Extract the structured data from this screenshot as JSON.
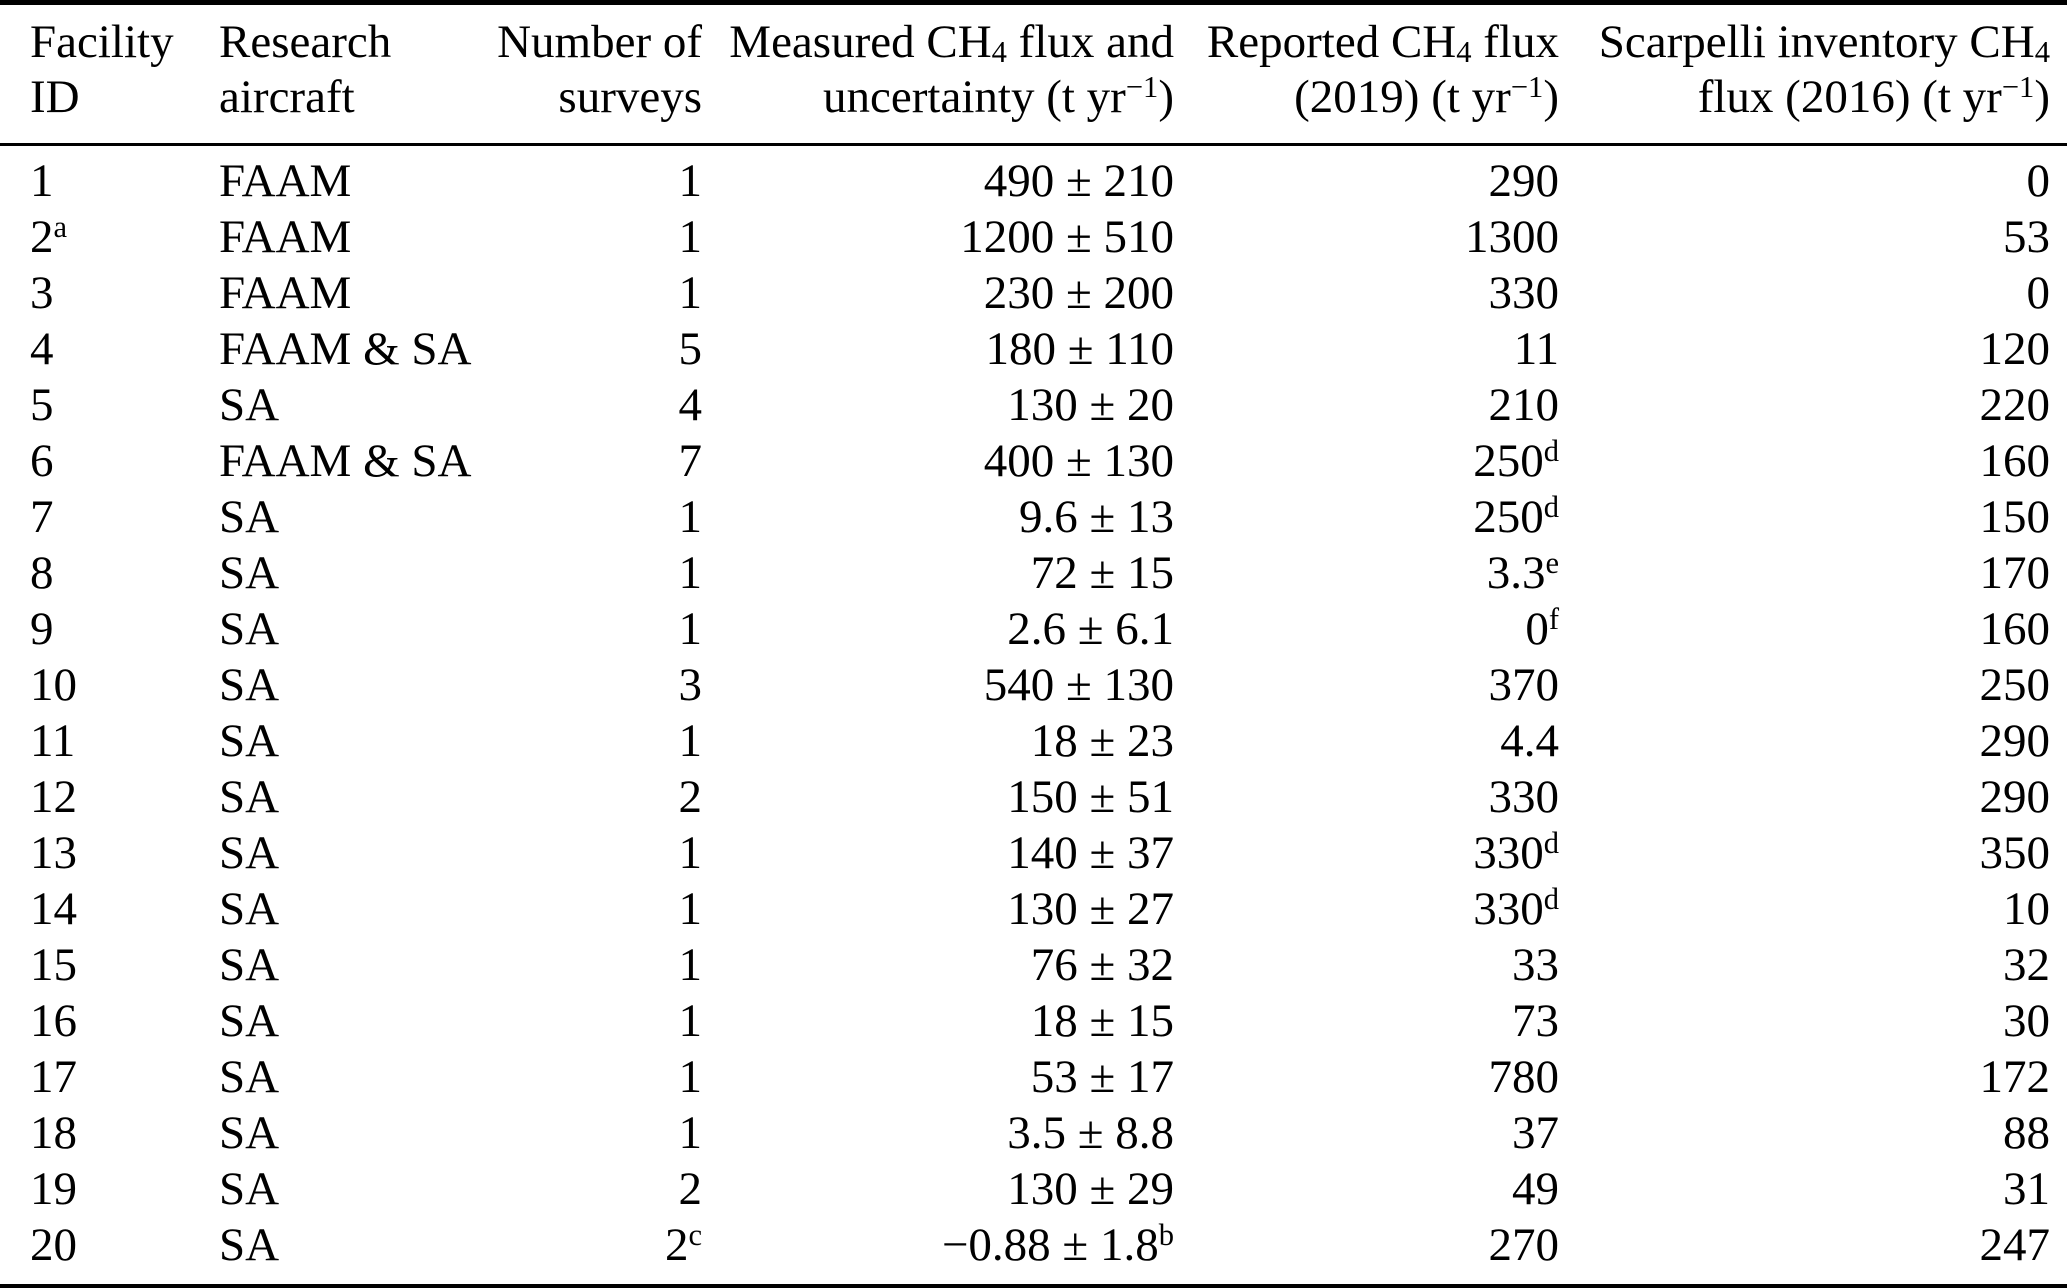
{
  "page": {
    "background_color": "#ffffff",
    "text_color": "#000000",
    "rule_color": "#000000"
  },
  "table": {
    "header": [
      {
        "id": "facility-id",
        "align": "left",
        "line1": [
          {
            "text": "Facility"
          }
        ],
        "line2": [
          {
            "text": "ID"
          }
        ]
      },
      {
        "id": "research-aircraft",
        "align": "left",
        "line1": [
          {
            "text": "Research"
          }
        ],
        "line2": [
          {
            "text": "aircraft"
          }
        ]
      },
      {
        "id": "number-of-surveys",
        "align": "right",
        "line1": [
          {
            "text": "Number of"
          }
        ],
        "line2": [
          {
            "text": "surveys"
          }
        ]
      },
      {
        "id": "measured-flux",
        "align": "right",
        "line1": [
          {
            "text": "Measured CH"
          },
          {
            "sub": "4"
          },
          {
            "text": " flux and"
          }
        ],
        "line2": [
          {
            "text": "uncertainty (t yr"
          },
          {
            "sup": "−1"
          },
          {
            "text": ")"
          }
        ]
      },
      {
        "id": "reported-flux",
        "align": "right",
        "line1": [
          {
            "text": "Reported CH"
          },
          {
            "sub": "4"
          },
          {
            "text": " flux"
          }
        ],
        "line2": [
          {
            "text": "(2019) (t yr"
          },
          {
            "sup": "−1"
          },
          {
            "text": ")"
          }
        ]
      },
      {
        "id": "scarpelli-flux",
        "align": "right",
        "line1": [
          {
            "text": "Scarpelli inventory CH"
          },
          {
            "sub": "4"
          }
        ],
        "line2": [
          {
            "text": "flux (2016) (t yr"
          },
          {
            "sup": "−1"
          },
          {
            "text": ")"
          }
        ]
      }
    ],
    "rows": [
      [
        [
          {
            "text": "1"
          }
        ],
        [
          {
            "text": "FAAM"
          }
        ],
        [
          {
            "text": "1"
          }
        ],
        [
          {
            "text": "490 ± 210"
          }
        ],
        [
          {
            "text": "290"
          }
        ],
        [
          {
            "text": "0"
          }
        ]
      ],
      [
        [
          {
            "text": "2"
          },
          {
            "sup": "a"
          }
        ],
        [
          {
            "text": "FAAM"
          }
        ],
        [
          {
            "text": "1"
          }
        ],
        [
          {
            "text": "1200 ± 510"
          }
        ],
        [
          {
            "text": "1300"
          }
        ],
        [
          {
            "text": "53"
          }
        ]
      ],
      [
        [
          {
            "text": "3"
          }
        ],
        [
          {
            "text": "FAAM"
          }
        ],
        [
          {
            "text": "1"
          }
        ],
        [
          {
            "text": "230 ± 200"
          }
        ],
        [
          {
            "text": "330"
          }
        ],
        [
          {
            "text": "0"
          }
        ]
      ],
      [
        [
          {
            "text": "4"
          }
        ],
        [
          {
            "text": "FAAM & SA"
          }
        ],
        [
          {
            "text": "5"
          }
        ],
        [
          {
            "text": "180 ± 110"
          }
        ],
        [
          {
            "text": "11"
          }
        ],
        [
          {
            "text": "120"
          }
        ]
      ],
      [
        [
          {
            "text": "5"
          }
        ],
        [
          {
            "text": "SA"
          }
        ],
        [
          {
            "text": "4"
          }
        ],
        [
          {
            "text": "130 ± 20"
          }
        ],
        [
          {
            "text": "210"
          }
        ],
        [
          {
            "text": "220"
          }
        ]
      ],
      [
        [
          {
            "text": "6"
          }
        ],
        [
          {
            "text": "FAAM & SA"
          }
        ],
        [
          {
            "text": "7"
          }
        ],
        [
          {
            "text": "400 ± 130"
          }
        ],
        [
          {
            "text": "250"
          },
          {
            "sup": "d"
          }
        ],
        [
          {
            "text": "160"
          }
        ]
      ],
      [
        [
          {
            "text": "7"
          }
        ],
        [
          {
            "text": "SA"
          }
        ],
        [
          {
            "text": "1"
          }
        ],
        [
          {
            "text": "9.6 ± 13"
          }
        ],
        [
          {
            "text": "250"
          },
          {
            "sup": "d"
          }
        ],
        [
          {
            "text": "150"
          }
        ]
      ],
      [
        [
          {
            "text": "8"
          }
        ],
        [
          {
            "text": "SA"
          }
        ],
        [
          {
            "text": "1"
          }
        ],
        [
          {
            "text": "72 ± 15"
          }
        ],
        [
          {
            "text": "3.3"
          },
          {
            "sup": "e"
          }
        ],
        [
          {
            "text": "170"
          }
        ]
      ],
      [
        [
          {
            "text": "9"
          }
        ],
        [
          {
            "text": "SA"
          }
        ],
        [
          {
            "text": "1"
          }
        ],
        [
          {
            "text": "2.6 ± 6.1"
          }
        ],
        [
          {
            "text": "0"
          },
          {
            "sup": "f"
          }
        ],
        [
          {
            "text": "160"
          }
        ]
      ],
      [
        [
          {
            "text": "10"
          }
        ],
        [
          {
            "text": "SA"
          }
        ],
        [
          {
            "text": "3"
          }
        ],
        [
          {
            "text": "540 ± 130"
          }
        ],
        [
          {
            "text": "370"
          }
        ],
        [
          {
            "text": "250"
          }
        ]
      ],
      [
        [
          {
            "text": "11"
          }
        ],
        [
          {
            "text": "SA"
          }
        ],
        [
          {
            "text": "1"
          }
        ],
        [
          {
            "text": "18 ± 23"
          }
        ],
        [
          {
            "text": "4.4"
          }
        ],
        [
          {
            "text": "290"
          }
        ]
      ],
      [
        [
          {
            "text": "12"
          }
        ],
        [
          {
            "text": "SA"
          }
        ],
        [
          {
            "text": "2"
          }
        ],
        [
          {
            "text": "150 ± 51"
          }
        ],
        [
          {
            "text": "330"
          }
        ],
        [
          {
            "text": "290"
          }
        ]
      ],
      [
        [
          {
            "text": "13"
          }
        ],
        [
          {
            "text": "SA"
          }
        ],
        [
          {
            "text": "1"
          }
        ],
        [
          {
            "text": "140 ± 37"
          }
        ],
        [
          {
            "text": "330"
          },
          {
            "sup": "d"
          }
        ],
        [
          {
            "text": "350"
          }
        ]
      ],
      [
        [
          {
            "text": "14"
          }
        ],
        [
          {
            "text": "SA"
          }
        ],
        [
          {
            "text": "1"
          }
        ],
        [
          {
            "text": "130 ± 27"
          }
        ],
        [
          {
            "text": "330"
          },
          {
            "sup": "d"
          }
        ],
        [
          {
            "text": "10"
          }
        ]
      ],
      [
        [
          {
            "text": "15"
          }
        ],
        [
          {
            "text": "SA"
          }
        ],
        [
          {
            "text": "1"
          }
        ],
        [
          {
            "text": "76 ± 32"
          }
        ],
        [
          {
            "text": "33"
          }
        ],
        [
          {
            "text": "32"
          }
        ]
      ],
      [
        [
          {
            "text": "16"
          }
        ],
        [
          {
            "text": "SA"
          }
        ],
        [
          {
            "text": "1"
          }
        ],
        [
          {
            "text": "18 ± 15"
          }
        ],
        [
          {
            "text": "73"
          }
        ],
        [
          {
            "text": "30"
          }
        ]
      ],
      [
        [
          {
            "text": "17"
          }
        ],
        [
          {
            "text": "SA"
          }
        ],
        [
          {
            "text": "1"
          }
        ],
        [
          {
            "text": "53 ± 17"
          }
        ],
        [
          {
            "text": "780"
          }
        ],
        [
          {
            "text": "172"
          }
        ]
      ],
      [
        [
          {
            "text": "18"
          }
        ],
        [
          {
            "text": "SA"
          }
        ],
        [
          {
            "text": "1"
          }
        ],
        [
          {
            "text": "3.5 ± 8.8"
          }
        ],
        [
          {
            "text": "37"
          }
        ],
        [
          {
            "text": "88"
          }
        ]
      ],
      [
        [
          {
            "text": "19"
          }
        ],
        [
          {
            "text": "SA"
          }
        ],
        [
          {
            "text": "2"
          }
        ],
        [
          {
            "text": "130 ± 29"
          }
        ],
        [
          {
            "text": "49"
          }
        ],
        [
          {
            "text": "31"
          }
        ]
      ],
      [
        [
          {
            "text": "20"
          }
        ],
        [
          {
            "text": "SA"
          }
        ],
        [
          {
            "text": "2"
          },
          {
            "sup": "c"
          }
        ],
        [
          {
            "text": "−0.88 ± 1.8"
          },
          {
            "sup": "b"
          }
        ],
        [
          {
            "text": "270"
          }
        ],
        [
          {
            "text": "247"
          }
        ]
      ]
    ]
  }
}
